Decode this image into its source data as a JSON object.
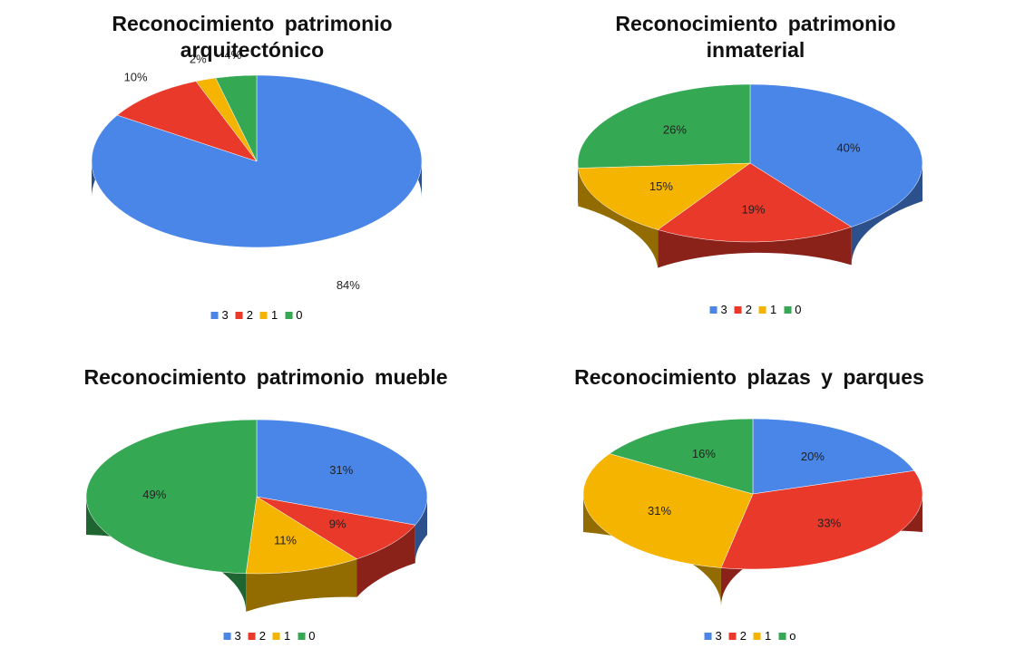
{
  "chart_data": [
    {
      "type": "pie",
      "title": "Reconocimiento patrimonio arquitectónico",
      "categories": [
        "3",
        "2",
        "1",
        "0"
      ],
      "values": [
        84,
        10,
        2,
        4
      ],
      "value_labels": [
        "84%",
        "10%",
        "2%",
        "4%"
      ],
      "colors": [
        "#4a86e8",
        "#e8392b",
        "#f4b400",
        "#34a853"
      ]
    },
    {
      "type": "pie",
      "title": "Reconocimiento patrimonio inmaterial",
      "categories": [
        "3",
        "2",
        "1",
        "0"
      ],
      "values": [
        40,
        19,
        15,
        26
      ],
      "value_labels": [
        "40%",
        "19%",
        "15%",
        "26%"
      ],
      "colors": [
        "#4a86e8",
        "#e8392b",
        "#f4b400",
        "#34a853"
      ]
    },
    {
      "type": "pie",
      "title": "Reconocimiento patrimonio mueble",
      "categories": [
        "3",
        "2",
        "1",
        "0"
      ],
      "values": [
        31,
        9,
        11,
        49
      ],
      "value_labels": [
        "31%",
        "9%",
        "11%",
        "49%"
      ],
      "colors": [
        "#4a86e8",
        "#e8392b",
        "#f4b400",
        "#34a853"
      ]
    },
    {
      "type": "pie",
      "title": "Reconocimiento plazas y parques",
      "categories": [
        "3",
        "2",
        "1",
        "o"
      ],
      "values": [
        20,
        33,
        31,
        16
      ],
      "value_labels": [
        "20%",
        "33%",
        "31%",
        "16%"
      ],
      "colors": [
        "#4a86e8",
        "#e8392b",
        "#f4b400",
        "#34a853"
      ]
    }
  ]
}
